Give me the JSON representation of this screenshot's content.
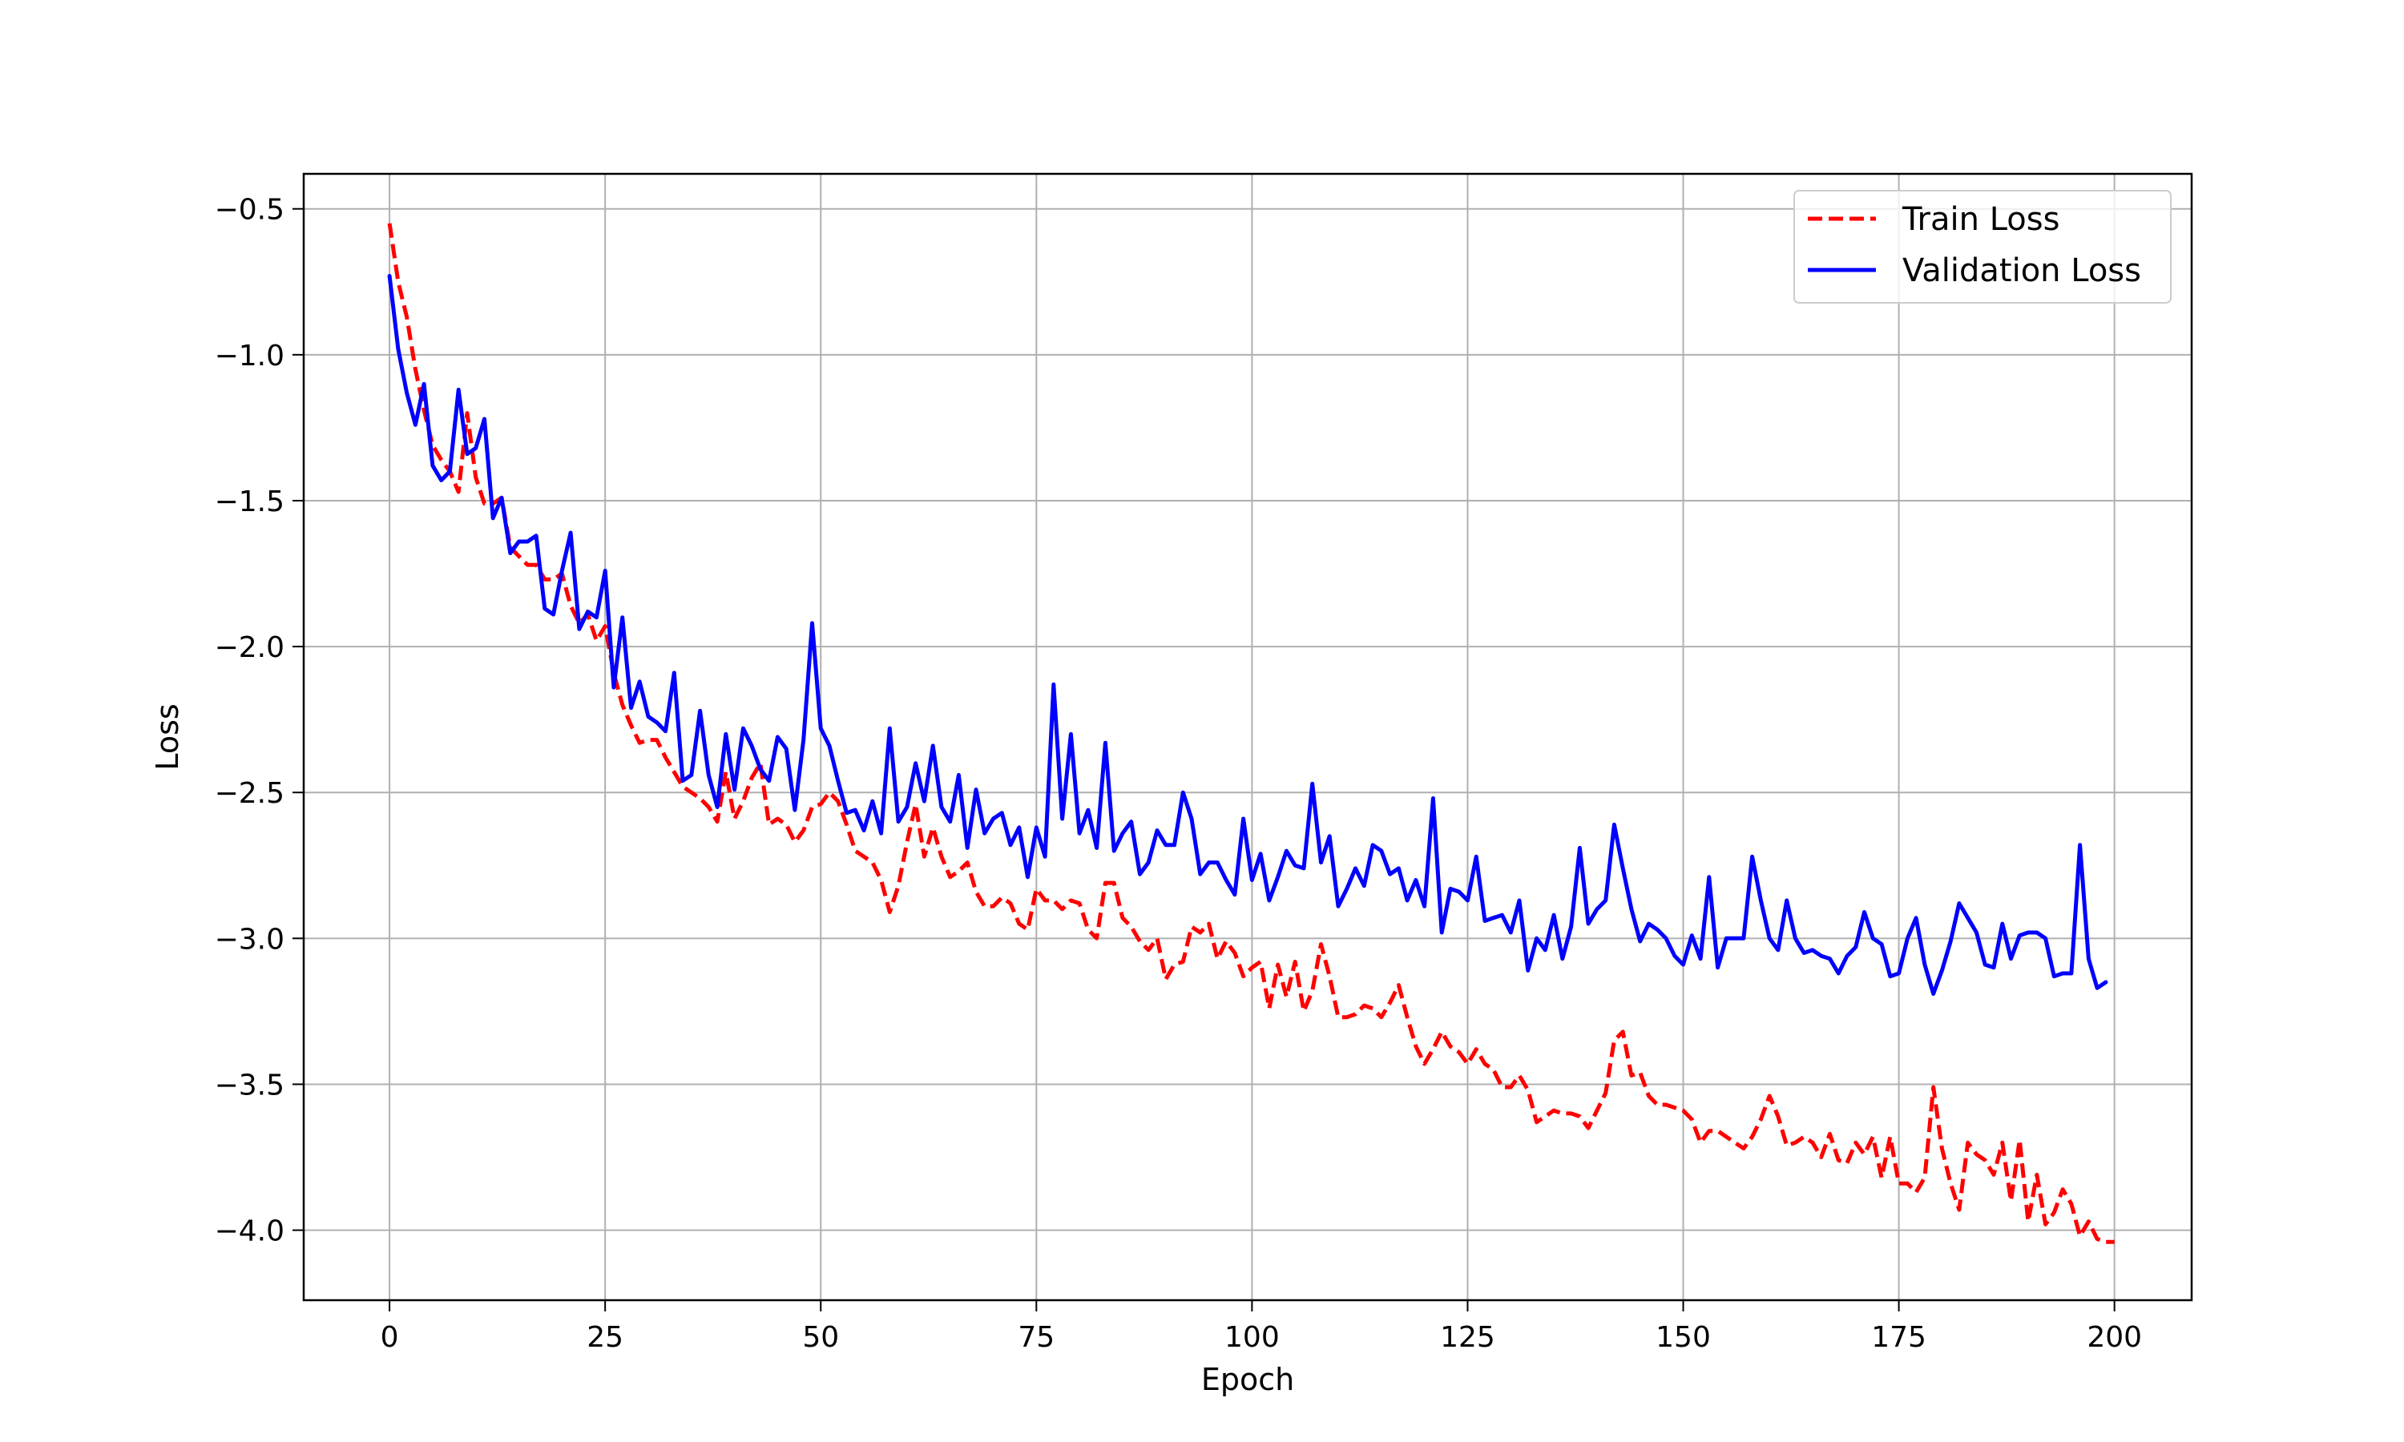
{
  "chart_data": {
    "type": "line",
    "title": "",
    "xlabel": "Epoch",
    "ylabel": "Loss",
    "xlim": [
      -9.95,
      208.95
    ],
    "ylim": [
      -4.24,
      -0.38
    ],
    "xticks": [
      0,
      25,
      50,
      75,
      100,
      125,
      150,
      175,
      200
    ],
    "xtick_labels": [
      "0",
      "25",
      "50",
      "75",
      "100",
      "125",
      "150",
      "175",
      "200"
    ],
    "yticks": [
      -4.0,
      -3.5,
      -3.0,
      -2.5,
      -2.0,
      -1.5,
      -1.0,
      -0.5
    ],
    "ytick_labels": [
      "−4.0",
      "−3.5",
      "−3.0",
      "−2.5",
      "−2.0",
      "−1.5",
      "−1.0",
      "−0.5"
    ],
    "grid": true,
    "legend_position": "upper right",
    "series": [
      {
        "name": "Train Loss",
        "color": "#ff0000",
        "style": "dashed",
        "x_start": 0,
        "values": [
          -0.55,
          -0.75,
          -0.87,
          -1.05,
          -1.19,
          -1.31,
          -1.36,
          -1.4,
          -1.47,
          -1.2,
          -1.42,
          -1.51,
          -1.51,
          -1.49,
          -1.66,
          -1.69,
          -1.72,
          -1.72,
          -1.77,
          -1.77,
          -1.75,
          -1.86,
          -1.92,
          -1.89,
          -1.98,
          -1.93,
          -2.09,
          -2.2,
          -2.27,
          -2.33,
          -2.32,
          -2.32,
          -2.38,
          -2.43,
          -2.48,
          -2.5,
          -2.52,
          -2.55,
          -2.6,
          -2.43,
          -2.59,
          -2.53,
          -2.45,
          -2.4,
          -2.61,
          -2.59,
          -2.61,
          -2.67,
          -2.63,
          -2.55,
          -2.54,
          -2.5,
          -2.53,
          -2.61,
          -2.7,
          -2.72,
          -2.74,
          -2.8,
          -2.91,
          -2.82,
          -2.67,
          -2.54,
          -2.72,
          -2.62,
          -2.72,
          -2.79,
          -2.77,
          -2.74,
          -2.84,
          -2.89,
          -2.89,
          -2.86,
          -2.88,
          -2.95,
          -2.97,
          -2.83,
          -2.87,
          -2.87,
          -2.9,
          -2.87,
          -2.88,
          -2.97,
          -3.0,
          -2.81,
          -2.81,
          -2.93,
          -2.96,
          -3.01,
          -3.04,
          -3.0,
          -3.14,
          -3.09,
          -3.08,
          -2.96,
          -2.98,
          -2.95,
          -3.07,
          -3.01,
          -3.05,
          -3.13,
          -3.1,
          -3.08,
          -3.24,
          -3.09,
          -3.2,
          -3.08,
          -3.25,
          -3.18,
          -3.02,
          -3.13,
          -3.27,
          -3.27,
          -3.26,
          -3.23,
          -3.24,
          -3.27,
          -3.22,
          -3.16,
          -3.27,
          -3.37,
          -3.43,
          -3.38,
          -3.32,
          -3.37,
          -3.39,
          -3.43,
          -3.38,
          -3.43,
          -3.45,
          -3.51,
          -3.51,
          -3.47,
          -3.52,
          -3.63,
          -3.61,
          -3.59,
          -3.6,
          -3.6,
          -3.61,
          -3.65,
          -3.59,
          -3.53,
          -3.35,
          -3.32,
          -3.47,
          -3.46,
          -3.54,
          -3.57,
          -3.57,
          -3.58,
          -3.59,
          -3.62,
          -3.7,
          -3.66,
          -3.66,
          -3.68,
          -3.7,
          -3.72,
          -3.68,
          -3.62,
          -3.54,
          -3.61,
          -3.71,
          -3.7,
          -3.68,
          -3.7,
          -3.75,
          -3.67,
          -3.76,
          -3.77,
          -3.7,
          -3.74,
          -3.68,
          -3.82,
          -3.68,
          -3.84,
          -3.84,
          -3.87,
          -3.82,
          -3.51,
          -3.72,
          -3.84,
          -3.93,
          -3.7,
          -3.74,
          -3.76,
          -3.81,
          -3.7,
          -3.9,
          -3.69,
          -3.97,
          -3.81,
          -3.98,
          -3.94,
          -3.86,
          -3.91,
          -4.02,
          -3.97,
          -4.03,
          -4.04,
          -4.04
        ]
      },
      {
        "name": "Validation Loss",
        "color": "#0000ff",
        "style": "solid",
        "x_start": 0,
        "values": [
          -0.73,
          -0.98,
          -1.13,
          -1.24,
          -1.1,
          -1.38,
          -1.43,
          -1.4,
          -1.12,
          -1.34,
          -1.32,
          -1.22,
          -1.56,
          -1.49,
          -1.68,
          -1.64,
          -1.64,
          -1.62,
          -1.87,
          -1.89,
          -1.74,
          -1.61,
          -1.94,
          -1.88,
          -1.9,
          -1.74,
          -2.14,
          -1.9,
          -2.21,
          -2.12,
          -2.24,
          -2.26,
          -2.29,
          -2.09,
          -2.46,
          -2.44,
          -2.22,
          -2.44,
          -2.55,
          -2.3,
          -2.49,
          -2.28,
          -2.34,
          -2.42,
          -2.46,
          -2.31,
          -2.35,
          -2.56,
          -2.32,
          -1.92,
          -2.28,
          -2.34,
          -2.46,
          -2.57,
          -2.56,
          -2.63,
          -2.53,
          -2.64,
          -2.28,
          -2.6,
          -2.55,
          -2.4,
          -2.53,
          -2.34,
          -2.55,
          -2.6,
          -2.44,
          -2.69,
          -2.49,
          -2.64,
          -2.59,
          -2.57,
          -2.68,
          -2.62,
          -2.79,
          -2.62,
          -2.72,
          -2.13,
          -2.59,
          -2.3,
          -2.64,
          -2.56,
          -2.69,
          -2.33,
          -2.7,
          -2.64,
          -2.6,
          -2.78,
          -2.74,
          -2.63,
          -2.68,
          -2.68,
          -2.5,
          -2.59,
          -2.78,
          -2.74,
          -2.74,
          -2.8,
          -2.85,
          -2.59,
          -2.8,
          -2.71,
          -2.87,
          -2.79,
          -2.7,
          -2.75,
          -2.76,
          -2.47,
          -2.74,
          -2.65,
          -2.89,
          -2.83,
          -2.76,
          -2.82,
          -2.68,
          -2.7,
          -2.78,
          -2.76,
          -2.87,
          -2.8,
          -2.89,
          -2.52,
          -2.98,
          -2.83,
          -2.84,
          -2.87,
          -2.72,
          -2.94,
          -2.93,
          -2.92,
          -2.98,
          -2.87,
          -3.11,
          -3.0,
          -3.04,
          -2.92,
          -3.07,
          -2.96,
          -2.69,
          -2.95,
          -2.9,
          -2.87,
          -2.61,
          -2.76,
          -2.9,
          -3.01,
          -2.95,
          -2.97,
          -3.0,
          -3.06,
          -3.09,
          -2.99,
          -3.07,
          -2.79,
          -3.1,
          -3.0,
          -3.0,
          -3.0,
          -2.72,
          -2.87,
          -3.0,
          -3.04,
          -2.87,
          -3.0,
          -3.05,
          -3.04,
          -3.06,
          -3.07,
          -3.12,
          -3.06,
          -3.03,
          -2.91,
          -3.0,
          -3.02,
          -3.13,
          -3.12,
          -3.0,
          -2.93,
          -3.09,
          -3.19,
          -3.11,
          -3.01,
          -2.88,
          -2.93,
          -2.98,
          -3.09,
          -3.1,
          -2.95,
          -3.07,
          -2.99,
          -2.98,
          -2.98,
          -3.0,
          -3.13,
          -3.12,
          -3.12,
          -2.68,
          -3.07,
          -3.17,
          -3.15
        ]
      }
    ]
  }
}
